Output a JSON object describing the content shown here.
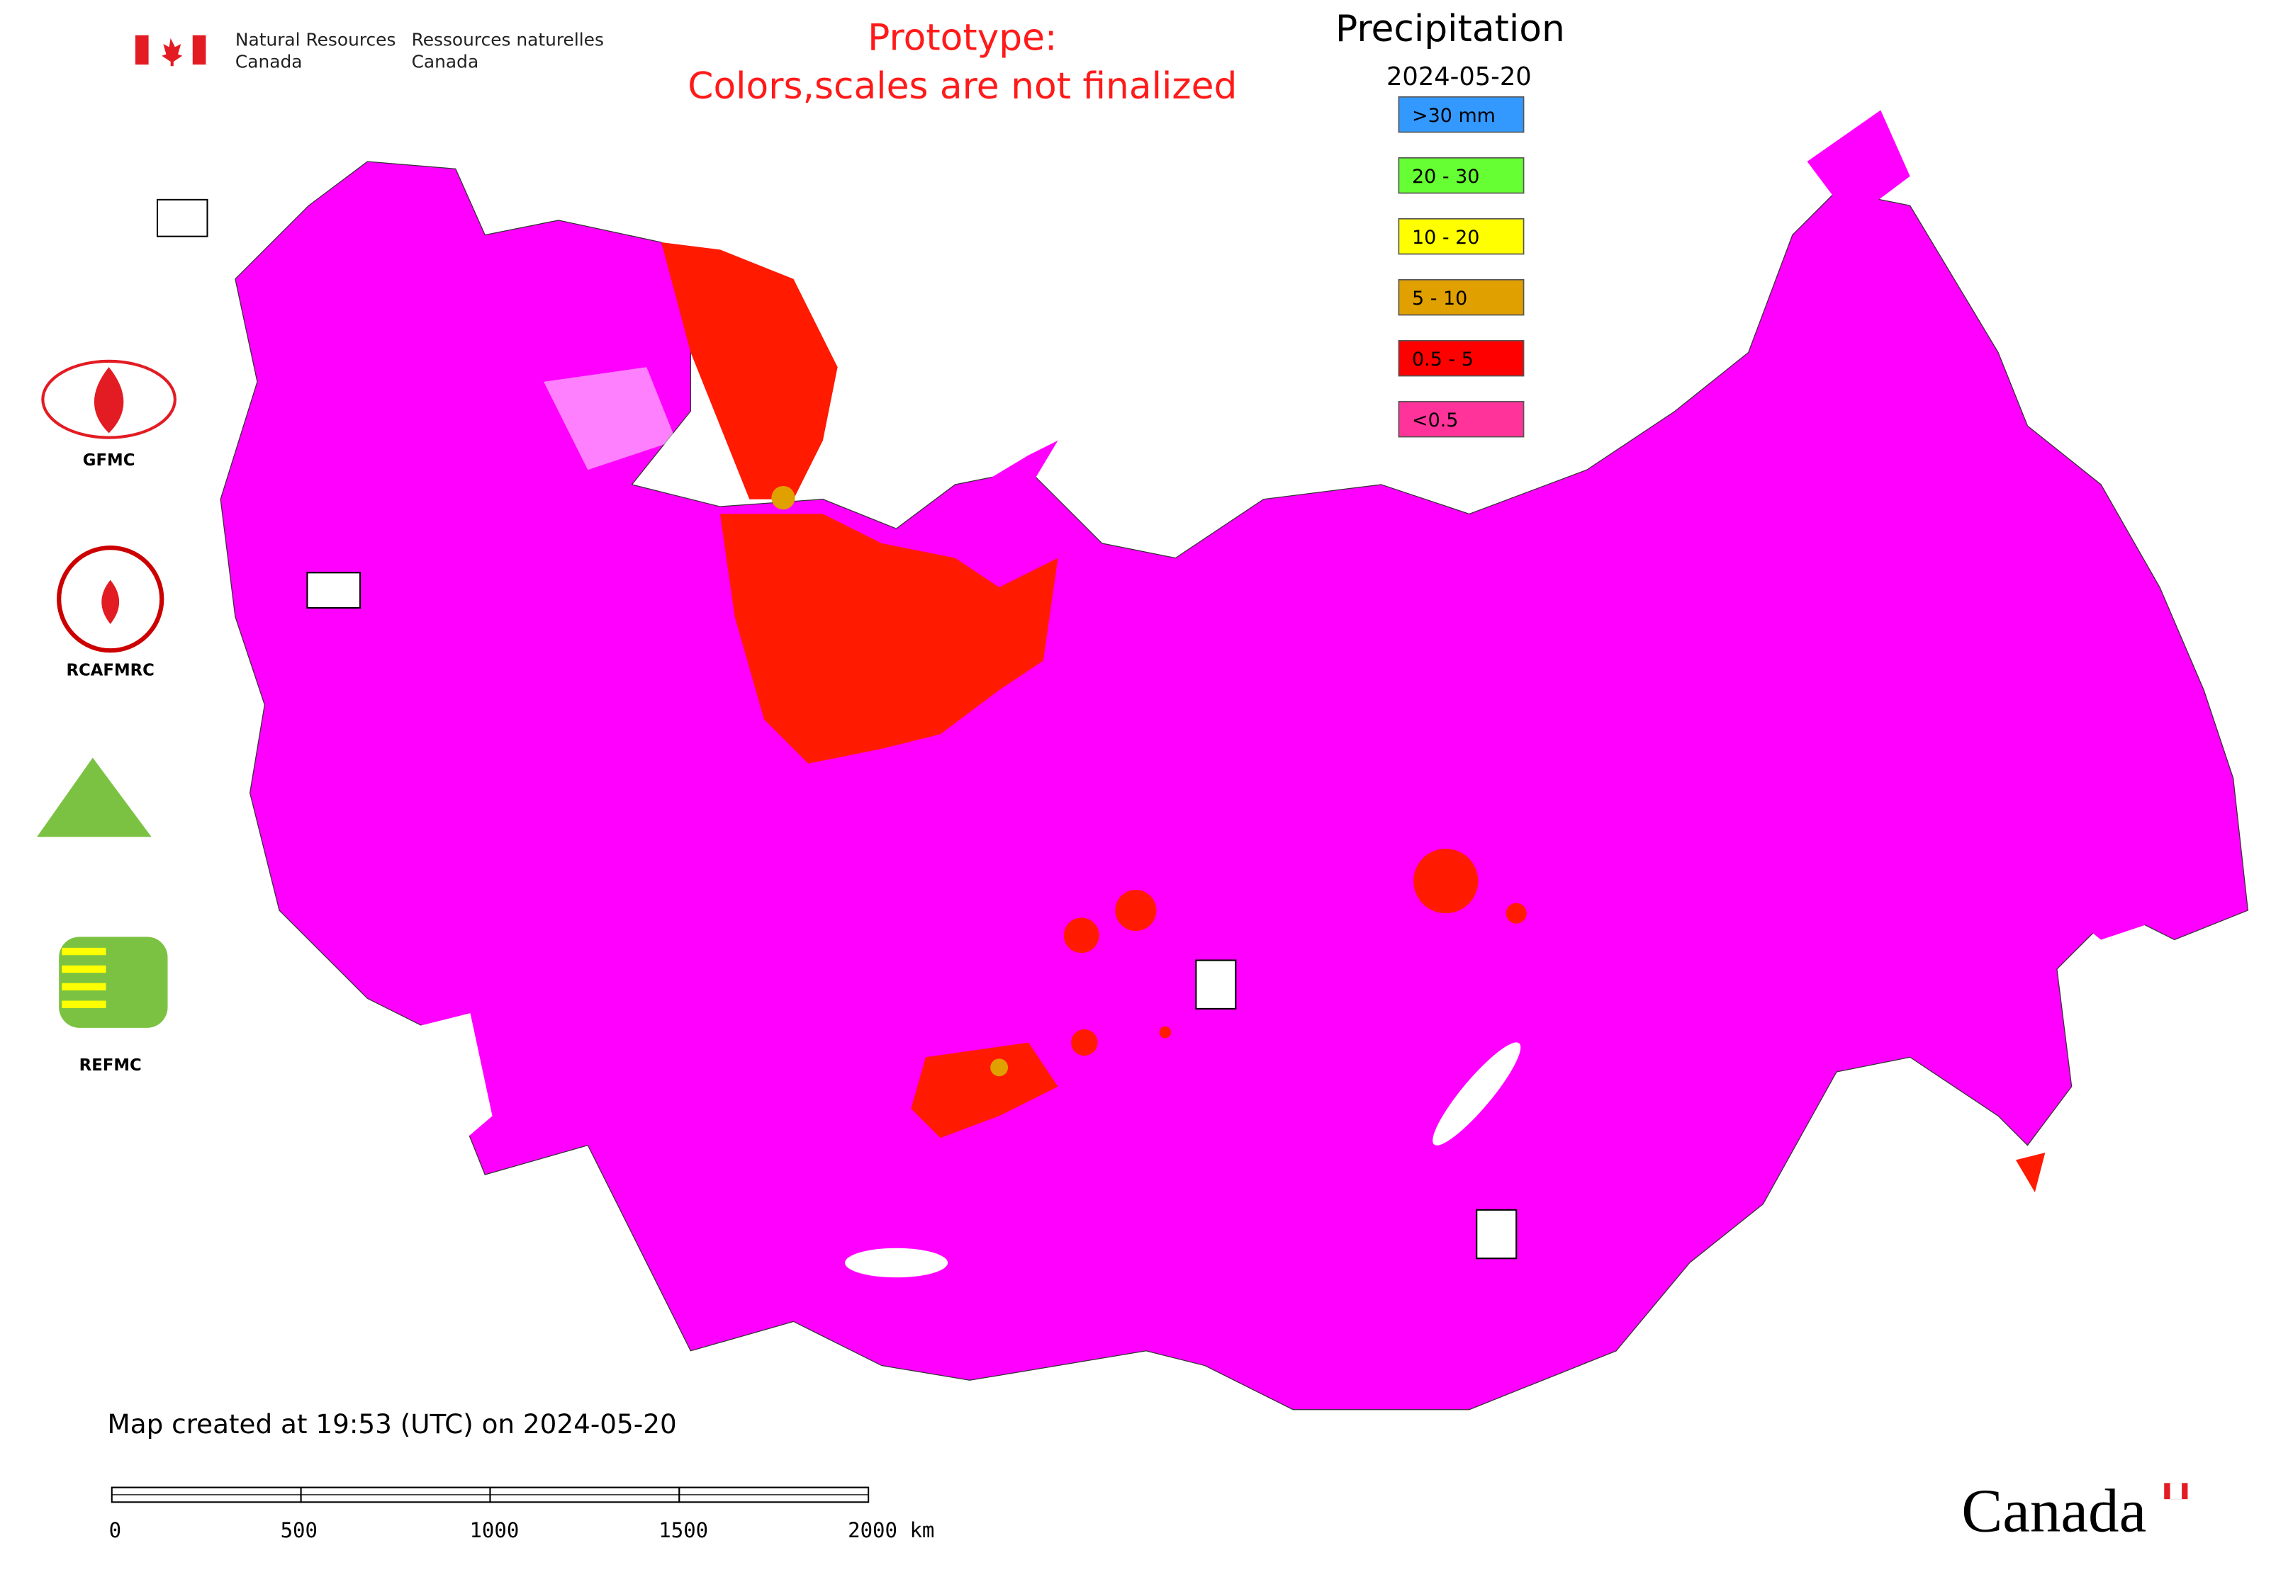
{
  "header": {
    "department_en": [
      "Natural Resources",
      "Canada"
    ],
    "department_fr": [
      "Ressources naturelles",
      "Canada"
    ]
  },
  "notice": [
    "Prototype:",
    "Colors,scales are not finalized"
  ],
  "legend": {
    "title": "Precipitation",
    "date": "2024-05-20",
    "items": [
      {
        "label": ">30 mm",
        "color": "#3399ff"
      },
      {
        "label": "20 - 30",
        "color": "#66ff33"
      },
      {
        "label": "10 - 20",
        "color": "#ffff00"
      },
      {
        "label": "5 - 10",
        "color": "#e0a000"
      },
      {
        "label": "0.5 - 5",
        "color": "#ff0000"
      },
      {
        "label": "<0.5",
        "color": "#ff3399"
      }
    ]
  },
  "logos": [
    "GFMC",
    "RCAFMRC",
    "REFMC"
  ],
  "footer": {
    "created": "Map created at 19:53 (UTC) on 2024-05-20",
    "scale_labels": [
      "0",
      "500",
      "1000",
      "1500",
      "2000 km"
    ],
    "wordmark": "Canada"
  }
}
